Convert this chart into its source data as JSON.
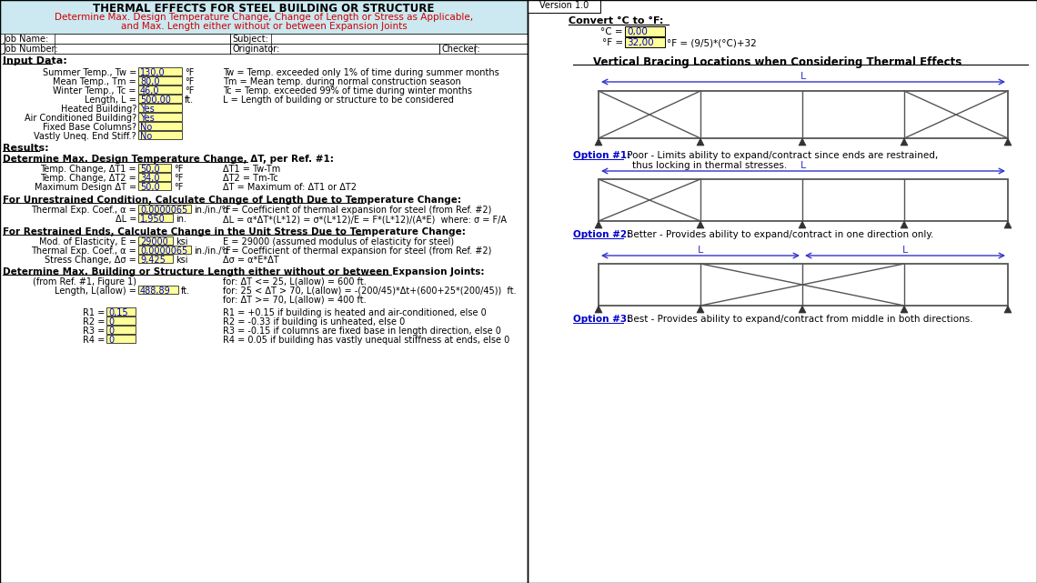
{
  "title_main": "THERMAL EFFECTS FOR STEEL BUILDING OR STRUCTURE",
  "title_sub1": "Determine Max. Design Temperature Change, Change of Length or Stress as Applicable,",
  "title_sub2": "and Max. Length either without or between Expansion Joints",
  "version": "Version 1.0",
  "header_bg": "#cce8f0",
  "yellow": "#ffff99",
  "input_data_title": "Input Data:",
  "results_title": "Results:",
  "section1_title": "Determine Max. Design Temperature Change, ΔT, per Ref. #1:",
  "section2_title": "For Unrestrained Condition, Calculate Change of Length Due to Temperature Change:",
  "section3_title": "For Restrained Ends, Calculate Change in the Unit Stress Due to Temperature Change:",
  "section4_title": "Determine Max. Building or Structure Length either without or between Expansion Joints:",
  "convert_title": "Convert °C to °F:",
  "bracing_title": "Vertical Bracing Locations when Considering Thermal Effects",
  "opt1_label": "Option #1:",
  "opt1_text": " Poor - Limits ability to expand/contract since ends are restrained,",
  "opt1_text2": "thus locking in thermal stresses.",
  "opt2_label": "Option #2:",
  "opt2_text": " Better - Provides ability to expand/contract in one direction only.",
  "opt3_label": "Option #3:",
  "opt3_text": " Best - Provides ability to expand/contract from middle in both directions.",
  "blue": "#0000cc",
  "red": "#cc0000",
  "dark_gray": "#555555",
  "black": "#000000"
}
